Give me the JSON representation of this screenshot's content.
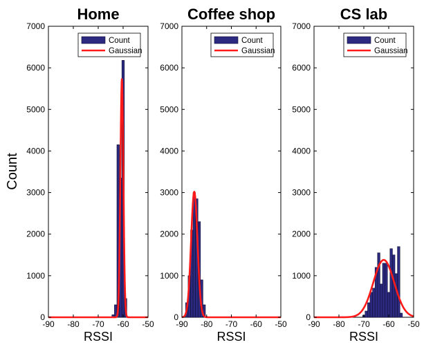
{
  "figure": {
    "ylabel": "Count"
  },
  "chart_data": [
    {
      "type": "bar",
      "title": "Home",
      "xlabel": "RSSI",
      "ylabel": "Count",
      "xlim": [
        -90,
        -50
      ],
      "ylim": [
        0,
        7000
      ],
      "xticks": [
        -90,
        -80,
        -70,
        -60,
        -50
      ],
      "yticks": [
        0,
        1000,
        2000,
        3000,
        4000,
        5000,
        6000,
        7000
      ],
      "legend": {
        "position": "top-right",
        "entries": [
          "Count",
          "Gaussian"
        ]
      },
      "series": [
        {
          "name": "Count",
          "type": "bar",
          "x": [
            -64,
            -63,
            -62,
            -61,
            -60,
            -59
          ],
          "values": [
            60,
            300,
            4150,
            3350,
            6180,
            450
          ]
        },
        {
          "name": "Gaussian",
          "type": "line",
          "mean": -60.5,
          "sd": 0.6,
          "peak": 5730
        }
      ],
      "colors": {
        "bar": "#2b2a80",
        "bar_edge": "#111133",
        "gaussian": "#ff1a1a"
      }
    },
    {
      "type": "bar",
      "title": "Coffee shop",
      "xlabel": "RSSI",
      "ylabel": "",
      "xlim": [
        -90,
        -50
      ],
      "ylim": [
        0,
        7000
      ],
      "xticks": [
        -90,
        -80,
        -70,
        -60,
        -50
      ],
      "yticks": [
        0,
        1000,
        2000,
        3000,
        4000,
        5000,
        6000,
        7000
      ],
      "legend": {
        "position": "top-right",
        "entries": [
          "Count",
          "Gaussian"
        ]
      },
      "series": [
        {
          "name": "Count",
          "type": "bar",
          "x": [
            -88,
            -87,
            -86,
            -85,
            -84,
            -83,
            -82,
            -81
          ],
          "values": [
            350,
            1000,
            2100,
            3000,
            2850,
            2300,
            900,
            300
          ]
        },
        {
          "name": "Gaussian",
          "type": "line",
          "mean": -85,
          "sd": 1.3,
          "peak": 3020
        }
      ],
      "colors": {
        "bar": "#2b2a80",
        "bar_edge": "#111133",
        "gaussian": "#ff1a1a"
      }
    },
    {
      "type": "bar",
      "title": "CS lab",
      "xlabel": "RSSI",
      "ylabel": "",
      "xlim": [
        -90,
        -50
      ],
      "ylim": [
        0,
        7000
      ],
      "xticks": [
        -90,
        -80,
        -70,
        -60,
        -50
      ],
      "yticks": [
        0,
        1000,
        2000,
        3000,
        4000,
        5000,
        6000,
        7000
      ],
      "legend": {
        "position": "top-right",
        "entries": [
          "Count",
          "Gaussian"
        ]
      },
      "series": [
        {
          "name": "Count",
          "type": "bar",
          "x": [
            -70,
            -69,
            -68,
            -67,
            -66,
            -65,
            -64,
            -63,
            -62,
            -61,
            -60,
            -59,
            -58,
            -57,
            -56,
            -55
          ],
          "values": [
            50,
            150,
            350,
            600,
            700,
            1200,
            1550,
            800,
            1300,
            1300,
            600,
            1650,
            1500,
            1050,
            1700,
            100
          ]
        },
        {
          "name": "Gaussian",
          "type": "line",
          "mean": -62,
          "sd": 4.2,
          "peak": 1380
        }
      ],
      "colors": {
        "bar": "#2b2a80",
        "bar_edge": "#111133",
        "gaussian": "#ff1a1a"
      }
    }
  ]
}
